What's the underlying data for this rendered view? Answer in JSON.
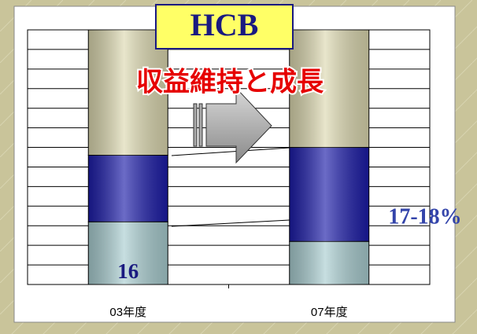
{
  "chart_data": {
    "type": "stacked-bar",
    "title": "HCB",
    "annotation": "収益維持と成長",
    "range_label": "17-18%",
    "categories": [
      "03年度",
      "07年度"
    ],
    "series": [
      {
        "name": "bottom",
        "color": "#a9cdd0",
        "values": [
          16,
          11
        ]
      },
      {
        "name": "middle",
        "color": "#1c1ca8",
        "values": [
          17,
          24
        ]
      },
      {
        "name": "top",
        "color": "#dcd8b0",
        "values": [
          32,
          30
        ]
      }
    ],
    "ylim": [
      0,
      65
    ],
    "yticks": [
      0,
      5,
      10,
      15,
      20,
      25,
      30,
      35,
      40,
      45,
      50,
      55,
      60,
      65
    ],
    "grid": true
  }
}
